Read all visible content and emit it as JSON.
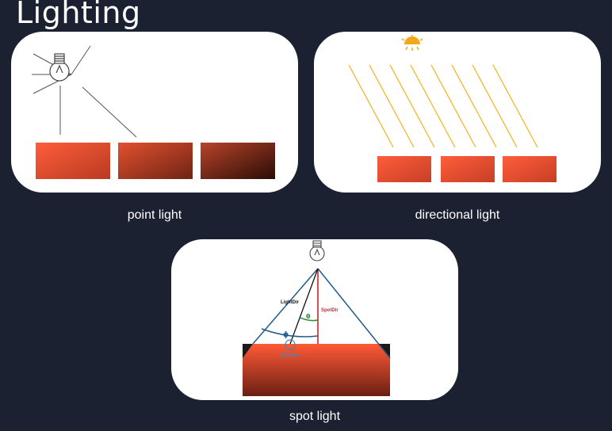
{
  "page": {
    "title": "Lighting"
  },
  "panels": {
    "point": {
      "caption": "point light"
    },
    "directional": {
      "caption": "directional light"
    },
    "spot": {
      "caption": "spot light",
      "labels": {
        "light_dir": "LightDir",
        "spot_dir": "SpotDir",
        "theta": "θ",
        "phi": "ϕ",
        "fragment": "fragment"
      }
    }
  },
  "colors": {
    "background": "#1b2130",
    "panel": "#ffffff",
    "ray_yellow": "#f2b21b",
    "cone_blue": "#1f5a8a",
    "spot_red": "#d6202a",
    "theta_green": "#2e8b3a",
    "fragment_blue": "#3a8cc0",
    "box_orange": "#ff5a36"
  },
  "icons": [
    "lightbulb-icon",
    "sun-icon"
  ]
}
